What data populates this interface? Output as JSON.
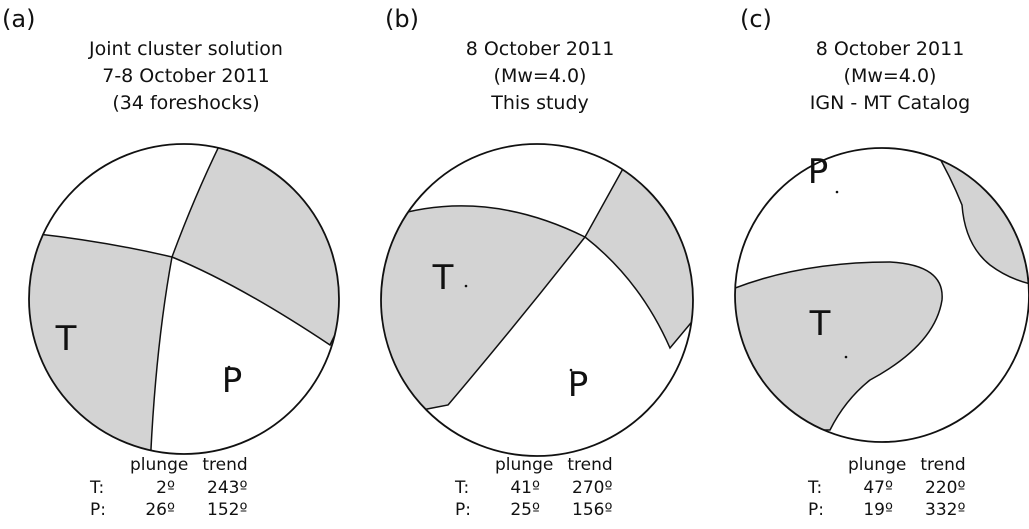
{
  "panels": [
    {
      "label": "(a)",
      "title": [
        "Joint cluster solution",
        "7-8 October 2011",
        "(34 foreshocks)"
      ],
      "markers": [
        "T",
        "P"
      ],
      "table": {
        "header": [
          "plunge",
          "trend"
        ],
        "rows": [
          [
            "T:",
            "2º",
            "243º"
          ],
          [
            "P:",
            "26º",
            "152º"
          ]
        ]
      }
    },
    {
      "label": "(b)",
      "title": [
        "8 October 2011",
        "(Mw=4.0)",
        "This study"
      ],
      "markers": [
        "T",
        "P"
      ],
      "table": {
        "header": [
          "plunge",
          "trend"
        ],
        "rows": [
          [
            "T:",
            "41º",
            "270º"
          ],
          [
            "P:",
            "25º",
            "156º"
          ]
        ]
      }
    },
    {
      "label": "(c)",
      "title": [
        "8 October 2011",
        "(Mw=4.0)",
        "IGN - MT Catalog"
      ],
      "markers": [
        "P",
        "T"
      ],
      "table": {
        "header": [
          "plunge",
          "trend"
        ],
        "rows": [
          [
            "T:",
            "47º",
            "220º"
          ],
          [
            "P:",
            "19º",
            "332º"
          ]
        ]
      }
    }
  ]
}
